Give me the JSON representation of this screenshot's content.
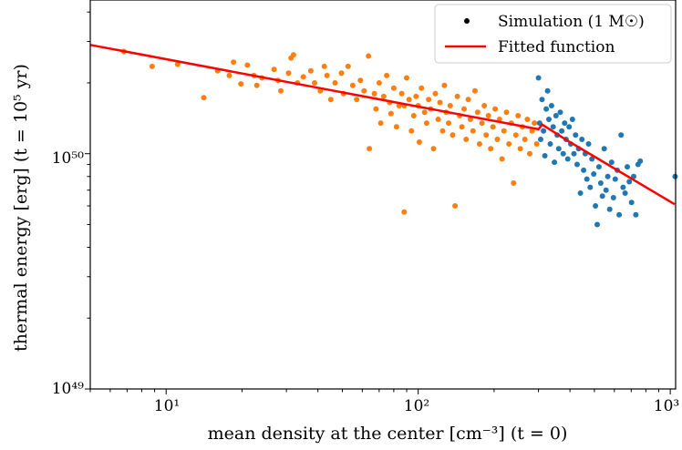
{
  "chart_data": {
    "type": "scatter",
    "xlabel": "mean density at the center [cm⁻³] (t = 0)",
    "ylabel": "thermal energy [erg] (t = 10⁵ yr)",
    "xscale": "log",
    "yscale": "log",
    "xlim": [
      5,
      1050
    ],
    "ylim": [
      1e+49,
      4.5e+50
    ],
    "grid": false,
    "legend_position": "top-right",
    "x_ticks": [
      {
        "value": 10,
        "label": "10¹"
      },
      {
        "value": 100,
        "label": "10²"
      },
      {
        "value": 1000,
        "label": "10³"
      }
    ],
    "y_ticks": [
      {
        "value": 1e+49,
        "label": "10⁴⁹"
      },
      {
        "value": 1e+50,
        "label": "10⁵⁰"
      }
    ],
    "legend": [
      {
        "label": "Simulation (1 M☉)",
        "marker": "dot"
      },
      {
        "label": "Fitted function",
        "marker": "line"
      }
    ],
    "colors": {
      "orange": "#ff7f0e",
      "blue": "#1f77b4",
      "fit": "#ff0000"
    },
    "series": [
      {
        "color": "orange",
        "points": [
          [
            6.8,
            2.72e+50
          ],
          [
            8.8,
            2.35e+50
          ],
          [
            11.1,
            2.4e+50
          ],
          [
            14.1,
            1.73e+50
          ],
          [
            16,
            2.25e+50
          ],
          [
            17.8,
            2.15e+50
          ],
          [
            18.5,
            2.45e+50
          ],
          [
            19.8,
            1.98e+50
          ],
          [
            21,
            2.38e+50
          ],
          [
            22.3,
            2.15e+50
          ],
          [
            22.9,
            1.95e+50
          ],
          [
            24,
            2.1e+50
          ],
          [
            26.8,
            2.28e+50
          ],
          [
            27.8,
            2.05e+50
          ],
          [
            28.5,
            1.85e+50
          ],
          [
            30.6,
            2.2e+50
          ],
          [
            31.3,
            2.55e+50
          ],
          [
            32,
            2.63e+50
          ],
          [
            33.2,
            2e+50
          ],
          [
            35,
            2.12e+50
          ],
          [
            37.5,
            2.25e+50
          ],
          [
            38.8,
            2e+50
          ],
          [
            40.9,
            1.85e+50
          ],
          [
            42.4,
            2.35e+50
          ],
          [
            43.5,
            2.15e+50
          ],
          [
            45,
            1.7e+50
          ],
          [
            46.8,
            2e+50
          ],
          [
            49.6,
            2.2e+50
          ],
          [
            50.5,
            1.8e+50
          ],
          [
            52.7,
            2.35e+50
          ],
          [
            55,
            1.95e+50
          ],
          [
            57,
            1.7e+50
          ],
          [
            59,
            2.05e+50
          ],
          [
            61,
            1.85e+50
          ],
          [
            63.5,
            2.6e+50
          ],
          [
            64,
            1.05e+50
          ],
          [
            67,
            1.8e+50
          ],
          [
            68,
            1.55e+50
          ],
          [
            70,
            2e+50
          ],
          [
            71,
            1.35e+50
          ],
          [
            73,
            1.75e+50
          ],
          [
            75,
            2.15e+50
          ],
          [
            77,
            1.65e+50
          ],
          [
            78,
            1.48e+50
          ],
          [
            80,
            1.9e+50
          ],
          [
            82,
            1.3e+50
          ],
          [
            84,
            1.6e+50
          ],
          [
            86,
            1.8e+50
          ],
          [
            88,
            1.6e+50
          ],
          [
            88,
            5.65e+49
          ],
          [
            90,
            2.1e+50
          ],
          [
            92,
            1.7e+50
          ],
          [
            94,
            1.25e+50
          ],
          [
            96,
            1.45e+50
          ],
          [
            98,
            1.75e+50
          ],
          [
            100,
            1.6e+50
          ],
          [
            101,
            1.12e+50
          ],
          [
            103,
            1.9e+50
          ],
          [
            106,
            1.5e+50
          ],
          [
            108,
            1.35e+50
          ],
          [
            110,
            1.7e+50
          ],
          [
            112,
            1.55e+50
          ],
          [
            115,
            1.05e+50
          ],
          [
            117,
            1.8e+50
          ],
          [
            120,
            1.4e+50
          ],
          [
            122,
            1.65e+50
          ],
          [
            125,
            1.25e+50
          ],
          [
            127,
            1.95e+50
          ],
          [
            129,
            1.5e+50
          ],
          [
            132,
            1.35e+50
          ],
          [
            134,
            1.6e+50
          ],
          [
            137,
            1.2e+50
          ],
          [
            140,
            6e+49
          ],
          [
            143,
            1.75e+50
          ],
          [
            146,
            1.45e+50
          ],
          [
            149,
            1.3e+50
          ],
          [
            152,
            1.55e+50
          ],
          [
            155,
            1.15e+50
          ],
          [
            158,
            1.7e+50
          ],
          [
            161,
            1.4e+50
          ],
          [
            165,
            1.25e+50
          ],
          [
            168,
            1.85e+50
          ],
          [
            172,
            1.5e+50
          ],
          [
            175,
            1.1e+50
          ],
          [
            179,
            1.35e+50
          ],
          [
            183,
            1.6e+50
          ],
          [
            186,
            1.2e+50
          ],
          [
            190,
            1.45e+50
          ],
          [
            194,
            1.05e+50
          ],
          [
            198,
            1.3e+50
          ],
          [
            202,
            1.55e+50
          ],
          [
            206,
            1.15e+50
          ],
          [
            210,
            1.4e+50
          ],
          [
            215,
            9.5e+49
          ],
          [
            219,
            1.25e+50
          ],
          [
            224,
            1.5e+50
          ],
          [
            229,
            1.1e+50
          ],
          [
            234,
            1.35e+50
          ],
          [
            239,
            7.5e+49
          ],
          [
            244,
            1.2e+50
          ],
          [
            249,
            1.45e+50
          ],
          [
            254,
            1.05e+50
          ],
          [
            259,
            1.3e+50
          ],
          [
            265,
            1.15e+50
          ],
          [
            271,
            1.4e+50
          ],
          [
            277,
            1e+50
          ],
          [
            283,
            1.25e+50
          ],
          [
            289,
            1.35e+50
          ],
          [
            295,
            1.1e+50
          ]
        ]
      },
      {
        "color": "blue",
        "points": [
          [
            300,
            2.1e+50
          ],
          [
            303,
            1.35e+50
          ],
          [
            306,
            1.15e+50
          ],
          [
            310,
            1.7e+50
          ],
          [
            314,
            1.25e+50
          ],
          [
            318,
            9.8e+49
          ],
          [
            322,
            1.55e+50
          ],
          [
            326,
            1.85e+50
          ],
          [
            330,
            1.4e+50
          ],
          [
            334,
            1.1e+50
          ],
          [
            338,
            1.6e+50
          ],
          [
            343,
            1.3e+50
          ],
          [
            347,
            9.2e+49
          ],
          [
            352,
            1.45e+50
          ],
          [
            356,
            1.2e+50
          ],
          [
            361,
            1.05e+50
          ],
          [
            366,
            1.5e+50
          ],
          [
            371,
            1.25e+50
          ],
          [
            376,
            1e+50
          ],
          [
            381,
            1.35e+50
          ],
          [
            386,
            1.15e+50
          ],
          [
            392,
            9.5e+49
          ],
          [
            397,
            1.3e+50
          ],
          [
            403,
            1.1e+50
          ],
          [
            409,
            1.4e+50
          ],
          [
            415,
            1e+50
          ],
          [
            421,
            1.2e+50
          ],
          [
            427,
            9e+49
          ],
          [
            433,
            1.05e+50
          ],
          [
            440,
            6.8e+49
          ],
          [
            446,
            1.15e+50
          ],
          [
            453,
            8.5e+49
          ],
          [
            460,
            1e+50
          ],
          [
            467,
            7.8e+49
          ],
          [
            474,
            1.1e+50
          ],
          [
            481,
            7.2e+49
          ],
          [
            489,
            9.5e+49
          ],
          [
            497,
            8.2e+49
          ],
          [
            505,
            6e+49
          ],
          [
            513,
            5e+49
          ],
          [
            521,
            8.8e+49
          ],
          [
            530,
            7.5e+49
          ],
          [
            538,
            6.6e+49
          ],
          [
            547,
            1.05e+50
          ],
          [
            556,
            7e+49
          ],
          [
            565,
            8e+49
          ],
          [
            575,
            5.8e+49
          ],
          [
            585,
            9.2e+49
          ],
          [
            595,
            6.5e+49
          ],
          [
            605,
            7.8e+49
          ],
          [
            616,
            8.5e+49
          ],
          [
            627,
            5.5e+49
          ],
          [
            638,
            1.2e+50
          ],
          [
            650,
            7.2e+49
          ],
          [
            662,
            6.8e+49
          ],
          [
            675,
            8.8e+49
          ],
          [
            688,
            7.6e+49
          ],
          [
            702,
            6.2e+49
          ],
          [
            716,
            8e+49
          ],
          [
            730,
            5.5e+49
          ],
          [
            745,
            9e+49
          ],
          [
            760,
            9.3e+49
          ],
          [
            1045,
            8e+49
          ]
        ]
      }
    ],
    "fit_line": [
      [
        5,
        2.9e+50
      ],
      [
        300,
        1.27e+50
      ],
      [
        310,
        1.33e+50
      ],
      [
        400,
        1.12e+50
      ],
      [
        1040,
        6.1e+49
      ]
    ]
  }
}
